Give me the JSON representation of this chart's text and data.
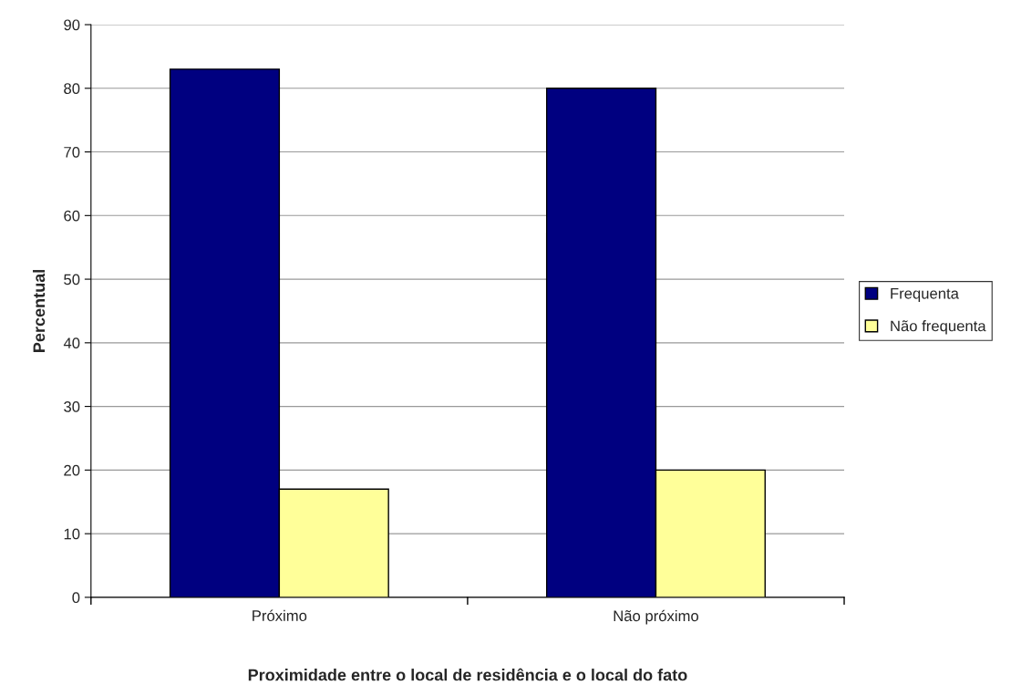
{
  "chart_data": {
    "type": "bar",
    "xlabel": "Proximidade entre o local de residência e o local do fato",
    "ylabel": "Percentual",
    "categories": [
      "Próximo",
      "Não próximo"
    ],
    "series": [
      {
        "name": "Frequenta",
        "color": "#000080",
        "values": [
          83,
          80
        ]
      },
      {
        "name": "Não frequenta",
        "color": "#ffff99",
        "values": [
          17,
          20
        ]
      }
    ],
    "ylim": [
      0,
      90
    ],
    "yticks": [
      0,
      10,
      20,
      30,
      40,
      50,
      60,
      70,
      80,
      90
    ],
    "grid": "y",
    "legend": "right"
  }
}
